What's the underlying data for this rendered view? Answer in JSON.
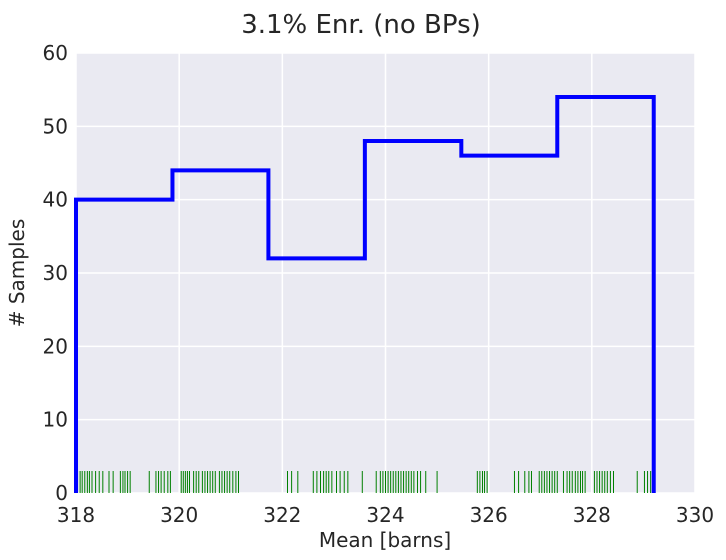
{
  "chart_data": {
    "type": "histogram",
    "title": "3.1% Enr. (no BPs)",
    "xlabel": "Mean [barns]",
    "ylabel": "# Samples",
    "xlim": [
      318,
      330
    ],
    "ylim": [
      0,
      60
    ],
    "xticks": [
      318,
      320,
      322,
      324,
      326,
      328,
      330
    ],
    "yticks": [
      0,
      10,
      20,
      30,
      40,
      50,
      60
    ],
    "grid": true,
    "background": "#eaeaf2",
    "grid_color": "#ffffff",
    "step_color": "#0000ff",
    "rug_color": "#008000",
    "bins": [
      {
        "x0": 318.0,
        "x1": 319.87,
        "count": 40
      },
      {
        "x0": 319.87,
        "x1": 321.73,
        "count": 44
      },
      {
        "x0": 321.73,
        "x1": 323.6,
        "count": 32
      },
      {
        "x0": 323.6,
        "x1": 325.47,
        "count": 48
      },
      {
        "x0": 325.47,
        "x1": 327.33,
        "count": 46
      },
      {
        "x0": 327.33,
        "x1": 329.2,
        "count": 54
      }
    ],
    "rug_samples": [
      318.03,
      318.08,
      318.12,
      318.17,
      318.22,
      318.26,
      318.31,
      318.38,
      318.45,
      318.52,
      318.64,
      318.72,
      318.86,
      318.91,
      318.95,
      319.0,
      319.05,
      319.42,
      319.55,
      319.6,
      319.65,
      319.71,
      319.78,
      319.83,
      320.04,
      320.08,
      320.12,
      320.16,
      320.2,
      320.28,
      320.33,
      320.38,
      320.45,
      320.5,
      320.55,
      320.6,
      320.65,
      320.7,
      320.78,
      320.83,
      320.88,
      320.93,
      320.98,
      321.04,
      321.1,
      321.15,
      322.1,
      322.18,
      322.3,
      322.6,
      322.67,
      322.74,
      322.8,
      322.85,
      322.9,
      322.96,
      323.05,
      323.12,
      323.2,
      323.27,
      323.55,
      323.82,
      323.9,
      323.95,
      324.0,
      324.05,
      324.1,
      324.15,
      324.2,
      324.25,
      324.3,
      324.35,
      324.4,
      324.45,
      324.5,
      324.55,
      324.62,
      324.68,
      324.78,
      325.0,
      325.78,
      325.83,
      325.88,
      325.92,
      325.97,
      326.5,
      326.58,
      326.7,
      326.78,
      326.83,
      326.98,
      327.03,
      327.08,
      327.13,
      327.18,
      327.23,
      327.28,
      327.33,
      327.45,
      327.52,
      327.57,
      327.62,
      327.68,
      327.73,
      327.78,
      327.82,
      327.87,
      328.05,
      328.1,
      328.15,
      328.2,
      328.25,
      328.3,
      328.36,
      328.42,
      328.88,
      329.02,
      329.08,
      329.14
    ]
  }
}
